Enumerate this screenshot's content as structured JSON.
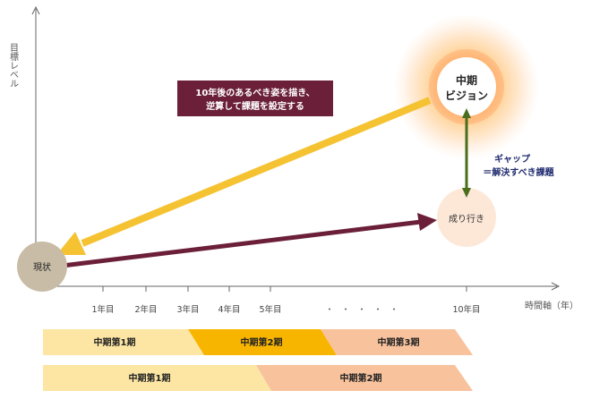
{
  "axes": {
    "y_label": "目標レベル",
    "x_label": "時間軸（年）"
  },
  "x_ticks": [
    "1年目",
    "2年目",
    "3年目",
    "4年目",
    "5年目",
    "10年目"
  ],
  "x_ellipsis": "・　・　・　・　・",
  "nodes": {
    "current": "現状",
    "trend": "成り行き",
    "vision_line1": "中期",
    "vision_line2": "ビジョン"
  },
  "callout": {
    "line1": "10年後のあるべき姿を描き、",
    "line2": "逆算して課題を設定する"
  },
  "gap": {
    "line1": "ギャップ",
    "line2": "＝解決すべき課題"
  },
  "timeline_row1": [
    "中期第1期",
    "中期第2期",
    "中期第3期"
  ],
  "timeline_row2": [
    "中期第1期",
    "中期第2期"
  ],
  "colors": {
    "maroon": "#6b1f38",
    "yellow_arrow": "#f5c232",
    "green_arrow": "#4a6e1c",
    "navy_text": "#1f2b6e",
    "current_circle": "#c8bca6",
    "trend_circle": "#fde8d8",
    "period_light_yellow": "#fde6a4",
    "period_gold": "#f8b500",
    "period_peach": "#f8c29c"
  }
}
